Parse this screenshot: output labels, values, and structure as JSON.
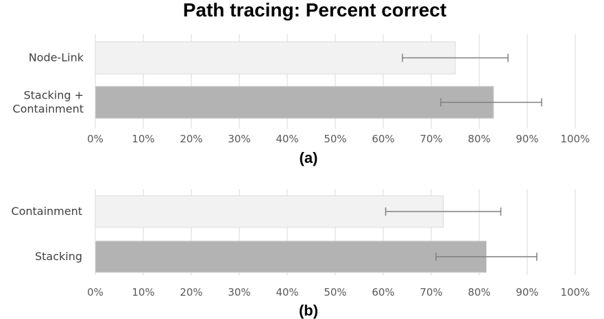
{
  "title": "Path tracing: Percent correct",
  "chart_data": [
    {
      "type": "bar",
      "orientation": "horizontal",
      "panel_label": "(a)",
      "categories": [
        "Node-Link",
        "Stacking + Containment"
      ],
      "category_lines": [
        [
          "Node-Link"
        ],
        [
          "Stacking +",
          "Containment"
        ]
      ],
      "values": [
        75,
        83
      ],
      "error_low": [
        64,
        72
      ],
      "error_high": [
        86,
        93
      ],
      "bar_colors": [
        "#f2f2f2",
        "#b3b3b3"
      ],
      "xlim": [
        0,
        100
      ],
      "ticks": [
        0,
        10,
        20,
        30,
        40,
        50,
        60,
        70,
        80,
        90,
        100
      ],
      "tick_labels": [
        "0%",
        "10%",
        "20%",
        "30%",
        "40%",
        "50%",
        "60%",
        "70%",
        "80%",
        "90%",
        "100%"
      ],
      "grid": true
    },
    {
      "type": "bar",
      "orientation": "horizontal",
      "panel_label": "(b)",
      "categories": [
        "Containment",
        "Stacking"
      ],
      "category_lines": [
        [
          "Containment"
        ],
        [
          "Stacking"
        ]
      ],
      "values": [
        72.5,
        81.5
      ],
      "error_low": [
        60.5,
        71
      ],
      "error_high": [
        84.5,
        92
      ],
      "bar_colors": [
        "#f2f2f2",
        "#b3b3b3"
      ],
      "xlim": [
        0,
        100
      ],
      "ticks": [
        0,
        10,
        20,
        30,
        40,
        50,
        60,
        70,
        80,
        90,
        100
      ],
      "tick_labels": [
        "0%",
        "10%",
        "20%",
        "30%",
        "40%",
        "50%",
        "60%",
        "70%",
        "80%",
        "90%",
        "100%"
      ],
      "grid": true
    }
  ]
}
